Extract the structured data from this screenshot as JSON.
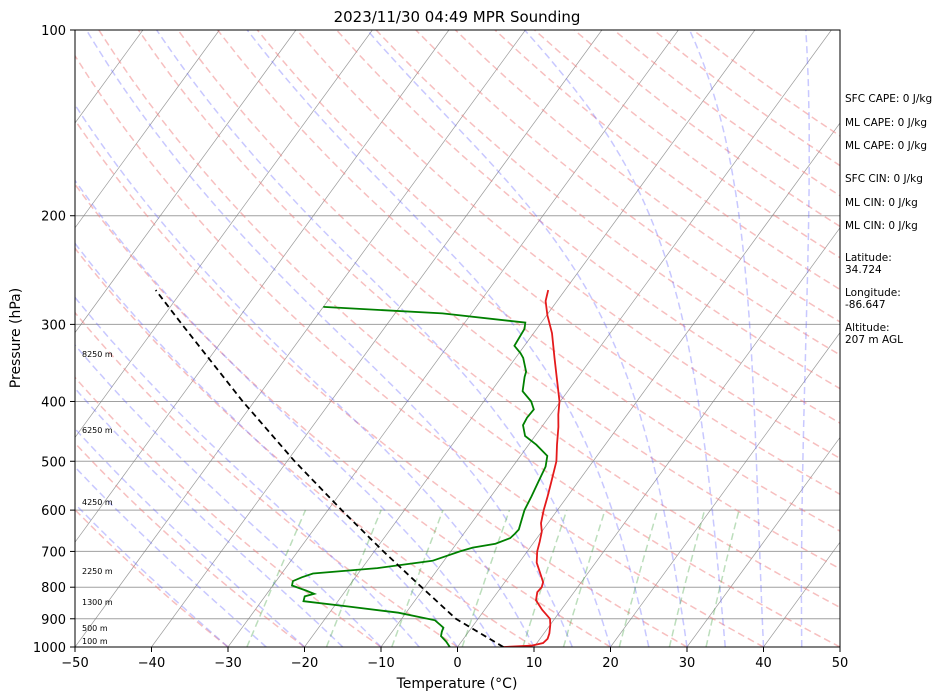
{
  "chart_data": {
    "type": "line",
    "subtype": "skew-t log-p sounding",
    "title": "2023/11/30 04:49 MPR Sounding",
    "xlabel": "Temperature (°C)",
    "ylabel": "Pressure (hPa)",
    "xlim": [
      -50,
      50
    ],
    "ylim": [
      1000,
      100
    ],
    "y_scale": "log",
    "x_ticks": [
      -50,
      -40,
      -30,
      -20,
      -10,
      0,
      10,
      20,
      30,
      40,
      50
    ],
    "x_tick_labels": [
      "−50",
      "−40",
      "−30",
      "−20",
      "−10",
      "0",
      "10",
      "20",
      "30",
      "40",
      "50"
    ],
    "y_ticks": [
      1000,
      900,
      800,
      700,
      600,
      500,
      400,
      300,
      200,
      100
    ],
    "y_tick_labels": [
      "1000",
      "900",
      "800",
      "700",
      "600",
      "500",
      "400",
      "300",
      "200",
      "100"
    ],
    "grid": "horizontal pressure lines; skewed isotherms",
    "colors": {
      "temperature": "#e41a1c",
      "dewpoint": "#008000",
      "parcel": "#000000",
      "dry_adiabats": "#f08080",
      "moist_adiabats": "#6060ff",
      "mixing_ratio": "#40a040",
      "isotherms": "#808080",
      "isobars": "#a0a0a0"
    },
    "series": [
      {
        "style": "solid",
        "color": "#e41a1c",
        "points": [
          [
            1000,
            6.0
          ],
          [
            995,
            9.5
          ],
          [
            985,
            10.8
          ],
          [
            970,
            11.0
          ],
          [
            950,
            10.7
          ],
          [
            920,
            10.0
          ],
          [
            900,
            9.4
          ],
          [
            870,
            7.5
          ],
          [
            840,
            5.8
          ],
          [
            815,
            5.2
          ],
          [
            800,
            5.3
          ],
          [
            785,
            5.0
          ],
          [
            760,
            3.8
          ],
          [
            730,
            2.3
          ],
          [
            700,
            1.3
          ],
          [
            675,
            0.7
          ],
          [
            650,
            0.0
          ],
          [
            630,
            -0.9
          ],
          [
            600,
            -1.8
          ],
          [
            570,
            -2.6
          ],
          [
            540,
            -3.5
          ],
          [
            500,
            -4.8
          ],
          [
            470,
            -6.3
          ],
          [
            440,
            -7.8
          ],
          [
            420,
            -9.0
          ],
          [
            400,
            -10.1
          ],
          [
            370,
            -12.4
          ],
          [
            340,
            -14.9
          ],
          [
            310,
            -17.6
          ],
          [
            290,
            -19.9
          ],
          [
            275,
            -21.5
          ],
          [
            264,
            -22.2
          ]
        ]
      },
      {
        "style": "solid",
        "color": "#008000",
        "points": [
          [
            1000,
            -1.0
          ],
          [
            980,
            -2.0
          ],
          [
            960,
            -3.2
          ],
          [
            945,
            -3.5
          ],
          [
            930,
            -3.7
          ],
          [
            905,
            -5.5
          ],
          [
            880,
            -11.0
          ],
          [
            860,
            -18.0
          ],
          [
            843,
            -24.5
          ],
          [
            828,
            -24.8
          ],
          [
            820,
            -23.8
          ],
          [
            810,
            -25.2
          ],
          [
            795,
            -27.5
          ],
          [
            782,
            -27.8
          ],
          [
            771,
            -27.0
          ],
          [
            760,
            -25.9
          ],
          [
            745,
            -18.0
          ],
          [
            725,
            -11.5
          ],
          [
            700,
            -8.8
          ],
          [
            690,
            -7.5
          ],
          [
            680,
            -4.9
          ],
          [
            666,
            -3.5
          ],
          [
            655,
            -3.3
          ],
          [
            645,
            -3.2
          ],
          [
            620,
            -3.8
          ],
          [
            600,
            -4.3
          ],
          [
            570,
            -4.7
          ],
          [
            540,
            -5.2
          ],
          [
            510,
            -5.7
          ],
          [
            490,
            -6.5
          ],
          [
            470,
            -9.0
          ],
          [
            455,
            -11.3
          ],
          [
            437,
            -12.6
          ],
          [
            425,
            -12.8
          ],
          [
            412,
            -12.7
          ],
          [
            400,
            -13.8
          ],
          [
            385,
            -15.9
          ],
          [
            365,
            -17.0
          ],
          [
            358,
            -17.3
          ],
          [
            340,
            -19.0
          ],
          [
            334,
            -19.8
          ],
          [
            325,
            -21.3
          ],
          [
            305,
            -21.6
          ],
          [
            298,
            -22.1
          ],
          [
            288,
            -33.8
          ],
          [
            281,
            -50.0
          ]
        ]
      },
      {
        "style": "dashed",
        "color": "#000000",
        "points": [
          [
            1000,
            6.0
          ],
          [
            900,
            -2.9
          ],
          [
            800,
            -10.4
          ],
          [
            700,
            -18.8
          ],
          [
            600,
            -28.2
          ],
          [
            500,
            -39.0
          ],
          [
            400,
            -51.5
          ],
          [
            300,
            -66.8
          ],
          [
            264,
            -73.5
          ]
        ]
      }
    ],
    "height_labels": [
      "100 m",
      "500 m",
      "1300 m",
      "2250 m",
      "4250 m",
      "6250 m",
      "8250 m"
    ],
    "annotations": [
      "SFC CAPE: 0 J/kg",
      "ML CAPE: 0 J/kg",
      "ML CAPE: 0 J/kg",
      "SFC CIN: 0 J/kg",
      "ML CIN: 0 J/kg",
      "ML CIN: 0 J/kg",
      "Latitude:",
      "34.724",
      "Longitude:",
      "-86.647",
      "Altitude:",
      "207 m AGL"
    ]
  }
}
